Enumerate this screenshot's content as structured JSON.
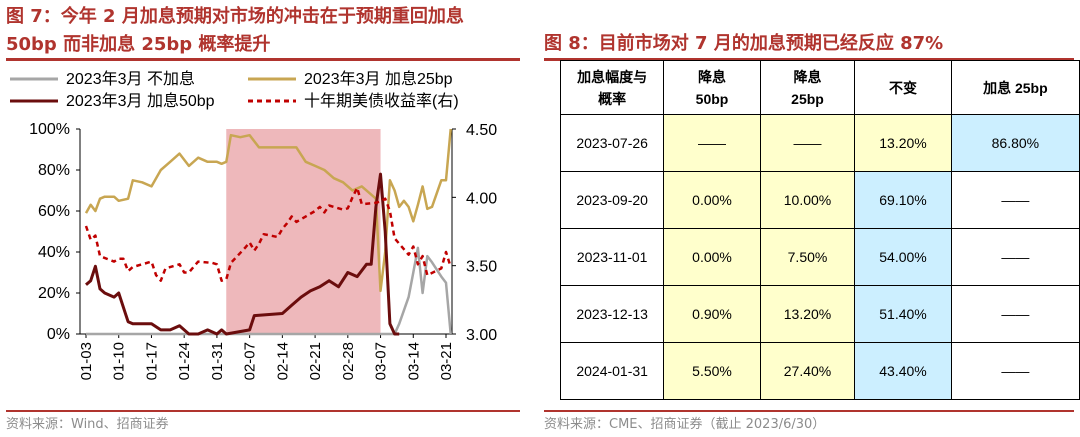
{
  "left_figure": {
    "title": "图 7：今年 2 月加息预期对市场的冲击在于预期重回加息 50bp 而非加息 25bp 概率提升",
    "source": "资料来源：Wind、招商证券"
  },
  "right_figure": {
    "title": "图 8：目前市场对 7 月的加息预期已经反应 87%",
    "source": "资料来源：CME、招商证券（截止 2023/6/30）"
  },
  "colors": {
    "accent": "#b0342e",
    "no_hike": "#a6a6a6",
    "hike25": "#c8a652",
    "hike50": "#6b0d0d",
    "yield10y": "#c00000",
    "shade": "#eeb8bb",
    "cell_yellow": "#ffffcc",
    "cell_cyan": "#ccefff"
  },
  "chart_data": {
    "type": "line",
    "x_tick_labels": [
      "01-03",
      "01-10",
      "01-17",
      "01-24",
      "01-31",
      "02-07",
      "02-14",
      "02-21",
      "02-28",
      "03-07",
      "03-14",
      "03-21"
    ],
    "x_start_date": "2023-01-03",
    "shaded_range": [
      "2023-02-02",
      "2023-03-07"
    ],
    "y_left": {
      "min": 0,
      "max": 100,
      "ticks": [
        "0%",
        "20%",
        "40%",
        "60%",
        "80%",
        "100%"
      ]
    },
    "y_right": {
      "min": 3.0,
      "max": 4.5,
      "ticks": [
        "3.00",
        "3.50",
        "4.00",
        "4.50"
      ]
    },
    "legend": [
      {
        "label": "2023年3月 不加息",
        "series": "no_hike"
      },
      {
        "label": "2023年3月 加息25bp",
        "series": "hike25"
      },
      {
        "label": "2023年3月 加息50bp",
        "series": "hike50"
      },
      {
        "label": "十年期美债收益率(右)",
        "series": "yield10y"
      }
    ],
    "series": [
      {
        "name": "2023年3月 不加息",
        "key": "no_hike",
        "axis": "left",
        "x": [
          "2023-01-03",
          "2023-03-07",
          "2023-03-08",
          "2023-03-10",
          "2023-03-11",
          "2023-03-13",
          "2023-03-14",
          "2023-03-15",
          "2023-03-16",
          "2023-03-17",
          "2023-03-18",
          "2023-03-20",
          "2023-03-21",
          "2023-03-22"
        ],
        "y": [
          0,
          0,
          0,
          0,
          5,
          18,
          30,
          42,
          20,
          38,
          35,
          28,
          25,
          0
        ]
      },
      {
        "name": "2023年3月 加息25bp",
        "key": "hike25",
        "axis": "left",
        "x": [
          "2023-01-03",
          "2023-01-04",
          "2023-01-05",
          "2023-01-06",
          "2023-01-07",
          "2023-01-09",
          "2023-01-10",
          "2023-01-12",
          "2023-01-13",
          "2023-01-15",
          "2023-01-17",
          "2023-01-19",
          "2023-01-21",
          "2023-01-23",
          "2023-01-25",
          "2023-01-27",
          "2023-01-29",
          "2023-01-31",
          "2023-02-01",
          "2023-02-02",
          "2023-02-03",
          "2023-02-05",
          "2023-02-07",
          "2023-02-09",
          "2023-02-13",
          "2023-02-15",
          "2023-02-17",
          "2023-02-19",
          "2023-02-21",
          "2023-02-23",
          "2023-02-25",
          "2023-02-27",
          "2023-03-01",
          "2023-03-03",
          "2023-03-05",
          "2023-03-06",
          "2023-03-07",
          "2023-03-08",
          "2023-03-09",
          "2023-03-10",
          "2023-03-11",
          "2023-03-12",
          "2023-03-13",
          "2023-03-14",
          "2023-03-15",
          "2023-03-16",
          "2023-03-17",
          "2023-03-18",
          "2023-03-20",
          "2023-03-21",
          "2023-03-22"
        ],
        "y": [
          59,
          63,
          60,
          66,
          67,
          67,
          65,
          66,
          75,
          74,
          72,
          80,
          84,
          88,
          82,
          86,
          84,
          84,
          83,
          84,
          97,
          96,
          97,
          91,
          91,
          91,
          91,
          84,
          82,
          80,
          76,
          74,
          70,
          72,
          68,
          66,
          21,
          40,
          75,
          70,
          62,
          65,
          62,
          55,
          63,
          72,
          61,
          62,
          75,
          75,
          100
        ]
      },
      {
        "name": "2023年3月 加息50bp",
        "key": "hike50",
        "axis": "left",
        "x": [
          "2023-01-03",
          "2023-01-04",
          "2023-01-05",
          "2023-01-06",
          "2023-01-07",
          "2023-01-09",
          "2023-01-10",
          "2023-01-12",
          "2023-01-13",
          "2023-01-15",
          "2023-01-17",
          "2023-01-19",
          "2023-01-21",
          "2023-01-23",
          "2023-01-25",
          "2023-01-27",
          "2023-01-29",
          "2023-01-31",
          "2023-02-01",
          "2023-02-02",
          "2023-02-07",
          "2023-02-08",
          "2023-02-14",
          "2023-02-16",
          "2023-02-18",
          "2023-02-20",
          "2023-02-22",
          "2023-02-24",
          "2023-02-26",
          "2023-02-28",
          "2023-03-02",
          "2023-03-04",
          "2023-03-05",
          "2023-03-06",
          "2023-03-07",
          "2023-03-08",
          "2023-03-09",
          "2023-03-10",
          "2023-03-11"
        ],
        "y": [
          24,
          26,
          33,
          22,
          20,
          18,
          20,
          6,
          5,
          5,
          5,
          2,
          2,
          4,
          0,
          0,
          2,
          0,
          2,
          0,
          2,
          9,
          10,
          14,
          18,
          21,
          23,
          26,
          23,
          30,
          28,
          34,
          34,
          62,
          78,
          50,
          5,
          0,
          0
        ]
      },
      {
        "name": "十年期美债收益率(右)",
        "key": "yield10y",
        "axis": "right",
        "x": [
          "2023-01-03",
          "2023-01-04",
          "2023-01-05",
          "2023-01-06",
          "2023-01-09",
          "2023-01-10",
          "2023-01-11",
          "2023-01-12",
          "2023-01-13",
          "2023-01-17",
          "2023-01-18",
          "2023-01-19",
          "2023-01-20",
          "2023-01-23",
          "2023-01-24",
          "2023-01-25",
          "2023-01-26",
          "2023-01-27",
          "2023-01-30",
          "2023-01-31",
          "2023-02-01",
          "2023-02-02",
          "2023-02-03",
          "2023-02-06",
          "2023-02-07",
          "2023-02-08",
          "2023-02-09",
          "2023-02-10",
          "2023-02-13",
          "2023-02-14",
          "2023-02-15",
          "2023-02-16",
          "2023-02-17",
          "2023-02-21",
          "2023-02-22",
          "2023-02-23",
          "2023-02-24",
          "2023-02-27",
          "2023-02-28",
          "2023-03-01",
          "2023-03-02",
          "2023-03-03",
          "2023-03-06",
          "2023-03-07",
          "2023-03-08",
          "2023-03-09",
          "2023-03-10",
          "2023-03-13",
          "2023-03-14",
          "2023-03-15",
          "2023-03-16",
          "2023-03-17",
          "2023-03-20",
          "2023-03-21",
          "2023-03-22"
        ],
        "y": [
          3.79,
          3.69,
          3.72,
          3.57,
          3.53,
          3.55,
          3.55,
          3.46,
          3.49,
          3.53,
          3.43,
          3.39,
          3.48,
          3.51,
          3.45,
          3.45,
          3.49,
          3.53,
          3.52,
          3.51,
          3.39,
          3.4,
          3.52,
          3.63,
          3.67,
          3.61,
          3.66,
          3.73,
          3.71,
          3.77,
          3.81,
          3.86,
          3.82,
          3.9,
          3.93,
          3.89,
          3.94,
          3.91,
          3.92,
          4.0,
          4.07,
          3.95,
          3.96,
          3.97,
          3.99,
          3.9,
          3.7,
          3.58,
          3.64,
          3.51,
          3.57,
          3.43,
          3.48,
          3.6,
          3.49
        ]
      }
    ]
  },
  "table": {
    "headers": [
      "加息幅度与概率",
      "降息50bp",
      "降息25bp",
      "不变",
      "加息 25bp"
    ],
    "rows": [
      {
        "date": "2023-07-26",
        "cut50": "——",
        "cut25": "——",
        "hold": "13.20%",
        "hike25": "86.80%"
      },
      {
        "date": "2023-09-20",
        "cut50": "0.00%",
        "cut25": "10.00%",
        "hold": "69.10%",
        "hike25": "——"
      },
      {
        "date": "2023-11-01",
        "cut50": "0.00%",
        "cut25": "7.50%",
        "hold": "54.00%",
        "hike25": "——"
      },
      {
        "date": "2023-12-13",
        "cut50": "0.90%",
        "cut25": "13.20%",
        "hold": "51.40%",
        "hike25": "——"
      },
      {
        "date": "2024-01-31",
        "cut50": "5.50%",
        "cut25": "27.40%",
        "hold": "43.40%",
        "hike25": "——"
      }
    ]
  }
}
